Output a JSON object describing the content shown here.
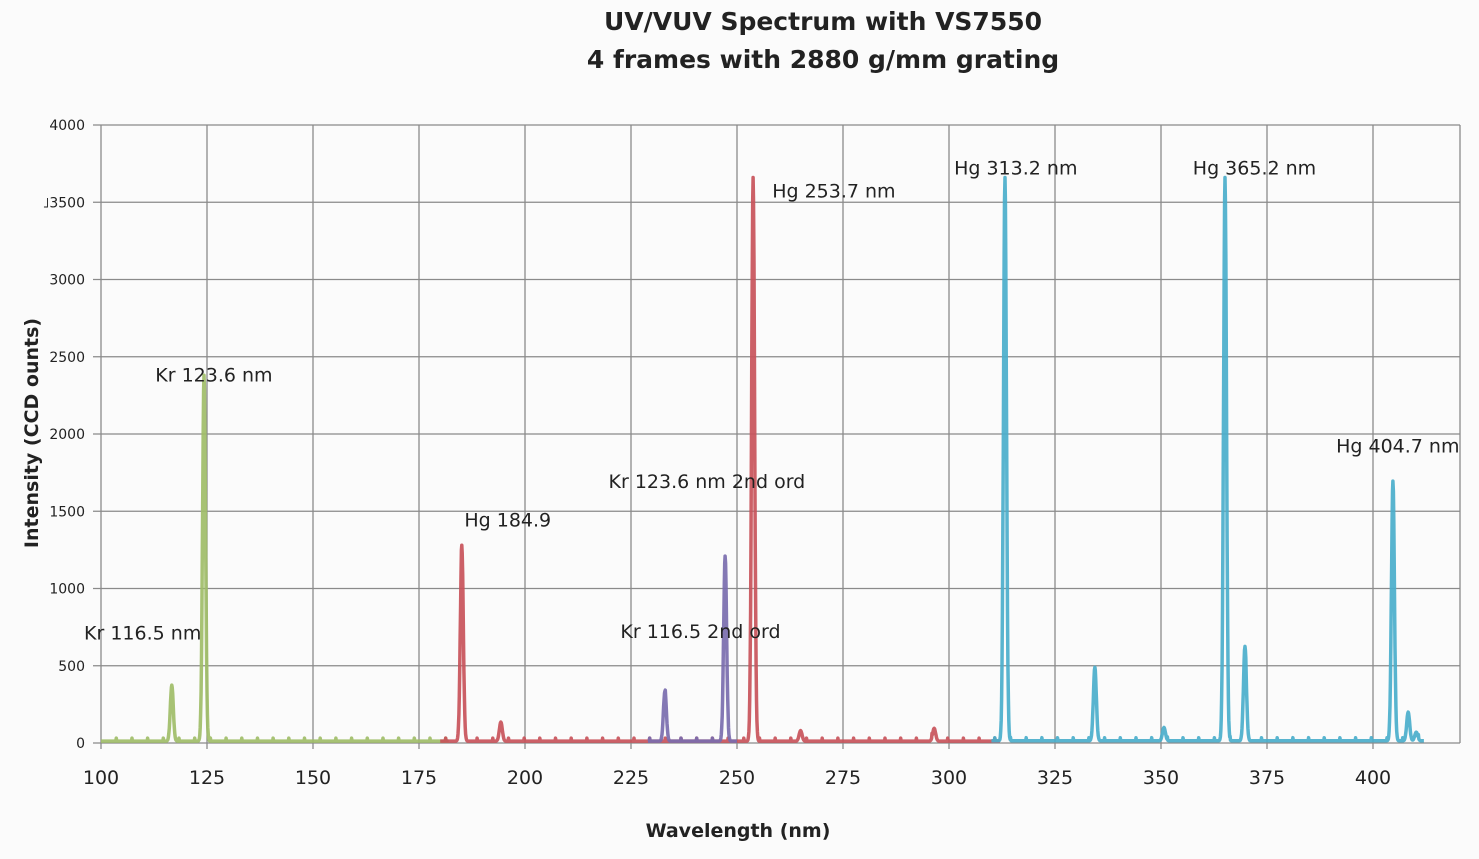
{
  "chart_data": {
    "type": "line",
    "title": "UV/VUV Spectrum with VS7550",
    "subtitle": "4 frames with 2880 g/mm grating",
    "xlabel": "Wavelength (nm)",
    "ylabel": "Intensity  (CCD ounts)",
    "xlim": [
      100,
      420
    ],
    "ylim": [
      0,
      4000
    ],
    "xticks": [
      100,
      125,
      150,
      175,
      200,
      225,
      250,
      275,
      300,
      325,
      350,
      375,
      400
    ],
    "xtick_labels": [
      "100",
      "125",
      "150",
      "175",
      "200",
      "225",
      "250",
      "275",
      "300",
      "325",
      "350",
      "375",
      "400"
    ],
    "yticks": [
      0,
      500,
      1000,
      1500,
      2000,
      2500,
      3000,
      3500,
      4000
    ],
    "ytick_labels": [
      "0",
      "500",
      "1000",
      "1500",
      "2000",
      "2500",
      "3000",
      "˩3500",
      "4000"
    ],
    "grid": true,
    "legend": "none",
    "series": [
      {
        "color": "#9fbd68",
        "x_range": [
          100,
          182
        ],
        "baseline": 12,
        "peaks": [
          [
            116.7,
            375
          ],
          [
            124.3,
            2380
          ]
        ]
      },
      {
        "color": "#c8525a",
        "x_range": [
          180,
          312
        ],
        "baseline": 12,
        "peaks": [
          [
            185.1,
            1280
          ],
          [
            194.3,
            135
          ],
          [
            253.8,
            3660
          ],
          [
            265.0,
            80
          ],
          [
            296.5,
            95
          ]
        ]
      },
      {
        "color": "#7a6cae",
        "x_range": [
          229,
          250
        ],
        "baseline": 12,
        "peaks": [
          [
            233.0,
            335
          ],
          [
            247.2,
            1210
          ]
        ]
      },
      {
        "color": "#4aaecb",
        "x_range": [
          310,
          412
        ],
        "baseline": 14,
        "peaks": [
          [
            313.2,
            3660
          ],
          [
            334.4,
            490
          ],
          [
            350.7,
            100
          ],
          [
            365.1,
            3660
          ],
          [
            369.8,
            625
          ],
          [
            404.7,
            1695
          ],
          [
            408.3,
            200
          ],
          [
            410.2,
            70
          ]
        ]
      }
    ],
    "annotations": [
      {
        "text": "Kr 116.5 nm",
        "x": 96,
        "y": 670
      },
      {
        "text": "Kr 123.6 nm",
        "x": 112.8,
        "y": 2340
      },
      {
        "text": "Hg 184.9",
        "x": 185.7,
        "y": 1400
      },
      {
        "text": "Kr 123.6 nm 2nd ord",
        "x": 219.7,
        "y": 1650
      },
      {
        "text": "Kr 116.5 2nd ord",
        "x": 222.5,
        "y": 680
      },
      {
        "text": "Hg 253.7 nm",
        "x": 258.3,
        "y": 3530
      },
      {
        "text": "Hg 313.2 nm",
        "x": 301.2,
        "y": 3680
      },
      {
        "text": "Hg 365.2 nm",
        "x": 357.5,
        "y": 3680
      },
      {
        "text": "Hg 404.7 nm",
        "x": 391.3,
        "y": 1880
      }
    ]
  }
}
